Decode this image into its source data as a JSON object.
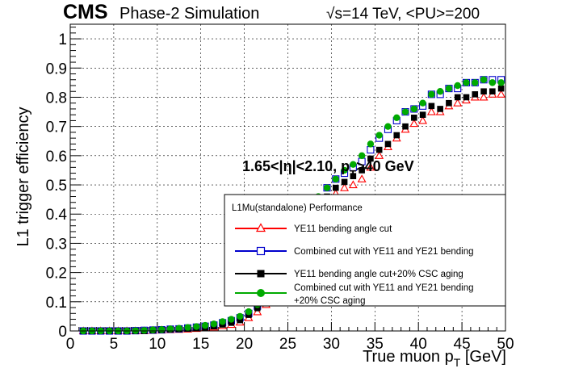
{
  "header": {
    "experiment": "CMS",
    "subtitle": "Phase-2 Simulation",
    "energy_sqrt": "√",
    "energy_rest": "s=14 TeV, <PU>=200"
  },
  "annotation": {
    "eta_part": "1.65<|η|<2.10, p",
    "sub": "T",
    "tail": ">40 GeV"
  },
  "legend": {
    "title": "L1Mu(standalone) Performance",
    "entries": [
      {
        "label": "YE11 bending angle cut",
        "color": "#ff0000",
        "marker": "open-triangle"
      },
      {
        "label": "Combined cut with YE11 and YE21 bending",
        "color": "#0000cc",
        "marker": "open-square"
      },
      {
        "label": "YE11 bending angle cut+20% CSC aging",
        "color": "#000000",
        "marker": "filled-square"
      },
      {
        "label": "Combined cut with YE11 and YE21 bending",
        "label2": "+20% CSC aging",
        "color": "#00aa00",
        "marker": "filled-circle"
      }
    ]
  },
  "chart_data": {
    "type": "scatter",
    "xlabel": "True muon p",
    "xlabel_sub": "T",
    "xlabel_unit": " [GeV]",
    "ylabel": "L1 trigger efficiency",
    "xlim": [
      0,
      50
    ],
    "ylim": [
      0,
      1.05
    ],
    "x_ticks": [
      0,
      5,
      10,
      15,
      20,
      25,
      30,
      35,
      40,
      45,
      50
    ],
    "y_ticks": [
      0,
      0.1,
      0.2,
      0.3,
      0.4,
      0.5,
      0.6,
      0.7,
      0.8,
      0.9,
      1
    ],
    "y_tick_labels": [
      "0",
      "0.1",
      "0.2",
      "0.3",
      "0.4",
      "0.5",
      "0.6",
      "0.7",
      "0.8",
      "0.9",
      "1"
    ],
    "grid": true,
    "x": [
      1.5,
      2.5,
      3.5,
      4.5,
      5.5,
      6.5,
      7.5,
      8.5,
      9.5,
      10.5,
      11.5,
      12.5,
      13.5,
      14.5,
      15.5,
      16.5,
      17.5,
      18.5,
      19.5,
      20.5,
      21.5,
      22.5,
      23.5,
      24.5,
      25.5,
      26.5,
      27.5,
      28.5,
      29.5,
      30.5,
      31.5,
      32.5,
      33.5,
      34.5,
      35.5,
      36.5,
      37.5,
      38.5,
      39.5,
      40.5,
      41.5,
      42.5,
      43.5,
      44.5,
      45.5,
      46.5,
      47.5,
      48.5,
      49.5
    ],
    "series": [
      {
        "name": "YE11 bending angle cut",
        "color": "#ff0000",
        "marker": "open-triangle",
        "values": [
          0.0,
          0.0,
          0.0,
          0.0,
          0.0,
          0.0,
          0.0,
          0.0,
          0.002,
          0.003,
          0.004,
          0.005,
          0.006,
          0.008,
          0.01,
          0.013,
          0.018,
          0.022,
          0.03,
          0.045,
          0.065,
          0.09,
          0.13,
          0.18,
          0.23,
          0.29,
          0.35,
          0.4,
          0.44,
          0.47,
          0.49,
          0.5,
          0.52,
          0.56,
          0.6,
          0.63,
          0.66,
          0.69,
          0.71,
          0.72,
          0.75,
          0.75,
          0.77,
          0.78,
          0.79,
          0.8,
          0.8,
          0.81,
          0.81
        ]
      },
      {
        "name": "Combined cut with YE11 and YE21 bending",
        "color": "#0000cc",
        "marker": "open-square",
        "values": [
          0.0,
          0.0,
          0.0,
          0.0,
          0.0,
          0.0,
          0.001,
          0.002,
          0.003,
          0.004,
          0.006,
          0.007,
          0.01,
          0.013,
          0.016,
          0.02,
          0.028,
          0.035,
          0.045,
          0.06,
          0.085,
          0.12,
          0.16,
          0.22,
          0.28,
          0.34,
          0.4,
          0.45,
          0.49,
          0.52,
          0.54,
          0.56,
          0.58,
          0.62,
          0.66,
          0.69,
          0.72,
          0.75,
          0.76,
          0.77,
          0.81,
          0.81,
          0.83,
          0.83,
          0.85,
          0.85,
          0.86,
          0.86,
          0.86
        ]
      },
      {
        "name": "YE11 bending angle cut+20% CSC aging",
        "color": "#000000",
        "marker": "filled-square",
        "values": [
          0.0,
          0.0,
          0.0,
          0.0,
          0.0,
          0.0,
          0.0,
          0.0,
          0.002,
          0.003,
          0.005,
          0.006,
          0.008,
          0.01,
          0.012,
          0.016,
          0.022,
          0.028,
          0.037,
          0.055,
          0.078,
          0.105,
          0.15,
          0.2,
          0.25,
          0.31,
          0.37,
          0.42,
          0.46,
          0.49,
          0.51,
          0.53,
          0.55,
          0.59,
          0.62,
          0.64,
          0.67,
          0.7,
          0.73,
          0.74,
          0.77,
          0.76,
          0.78,
          0.8,
          0.8,
          0.81,
          0.82,
          0.82,
          0.83
        ]
      },
      {
        "name": "Combined cut with YE11 and YE21 bending +20% CSC aging",
        "color": "#00aa00",
        "marker": "filled-circle",
        "values": [
          0.0,
          0.0,
          0.0,
          0.0,
          0.0,
          0.0,
          0.001,
          0.002,
          0.004,
          0.005,
          0.007,
          0.009,
          0.012,
          0.015,
          0.019,
          0.024,
          0.032,
          0.04,
          0.05,
          0.066,
          0.09,
          0.125,
          0.17,
          0.23,
          0.29,
          0.35,
          0.41,
          0.46,
          0.49,
          0.52,
          0.55,
          0.57,
          0.6,
          0.64,
          0.67,
          0.7,
          0.73,
          0.75,
          0.76,
          0.78,
          0.81,
          0.82,
          0.83,
          0.84,
          0.85,
          0.85,
          0.86,
          0.85,
          0.85
        ]
      }
    ]
  }
}
